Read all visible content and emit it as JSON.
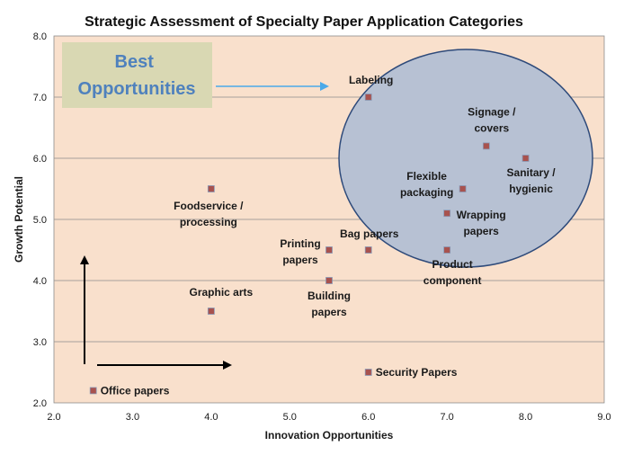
{
  "chart_data": {
    "type": "scatter",
    "title": "Strategic Assessment of Specialty Paper Application Categories",
    "xlabel": "Innovation Opportunities",
    "ylabel": "Growth Potential",
    "xlim": [
      2.0,
      9.0
    ],
    "ylim": [
      2.0,
      8.0
    ],
    "x_ticks": [
      "2.0",
      "3.0",
      "4.0",
      "5.0",
      "6.0",
      "7.0",
      "8.0",
      "9.0"
    ],
    "y_ticks": [
      "2.0",
      "3.0",
      "4.0",
      "5.0",
      "6.0",
      "7.0",
      "8.0"
    ],
    "grid": "horizontal",
    "colors": {
      "plot_bg": "#f9e0cc",
      "marker": "#a8524e",
      "marker_edge": "#8a9bb8",
      "ellipse_fill": "#b7c1d3",
      "ellipse_edge": "#2e4a7a",
      "callout_bg": "#d9d8b3",
      "callout_text": "#4f81bd",
      "arrow_blue": "#4aa9e9"
    },
    "points": [
      {
        "lines": [
          "Labeling"
        ],
        "x": 6.0,
        "y": 7.0
      },
      {
        "lines": [
          "Signage /",
          "covers"
        ],
        "x": 7.5,
        "y": 6.2
      },
      {
        "lines": [
          "Sanitary /",
          "hygienic"
        ],
        "x": 8.0,
        "y": 6.0
      },
      {
        "lines": [
          "Flexible",
          "packaging"
        ],
        "x": 7.2,
        "y": 5.5
      },
      {
        "lines": [
          "Wrapping",
          "papers"
        ],
        "x": 7.0,
        "y": 5.1
      },
      {
        "lines": [
          "Foodservice /",
          "processing"
        ],
        "x": 4.0,
        "y": 5.5
      },
      {
        "lines": [
          "Printing",
          "papers"
        ],
        "x": 5.5,
        "y": 4.5
      },
      {
        "lines": [
          "Bag papers"
        ],
        "x": 6.0,
        "y": 4.5
      },
      {
        "lines": [
          "Product",
          "component"
        ],
        "x": 7.0,
        "y": 4.5
      },
      {
        "lines": [
          "Building",
          "papers"
        ],
        "x": 5.5,
        "y": 4.0
      },
      {
        "lines": [
          "Graphic arts"
        ],
        "x": 4.0,
        "y": 3.5
      },
      {
        "lines": [
          "Security Papers"
        ],
        "x": 6.0,
        "y": 2.5
      },
      {
        "lines": [
          "Office papers"
        ],
        "x": 2.5,
        "y": 2.2
      }
    ],
    "annotation": {
      "lines": [
        "Best",
        "Opportunities"
      ]
    }
  }
}
